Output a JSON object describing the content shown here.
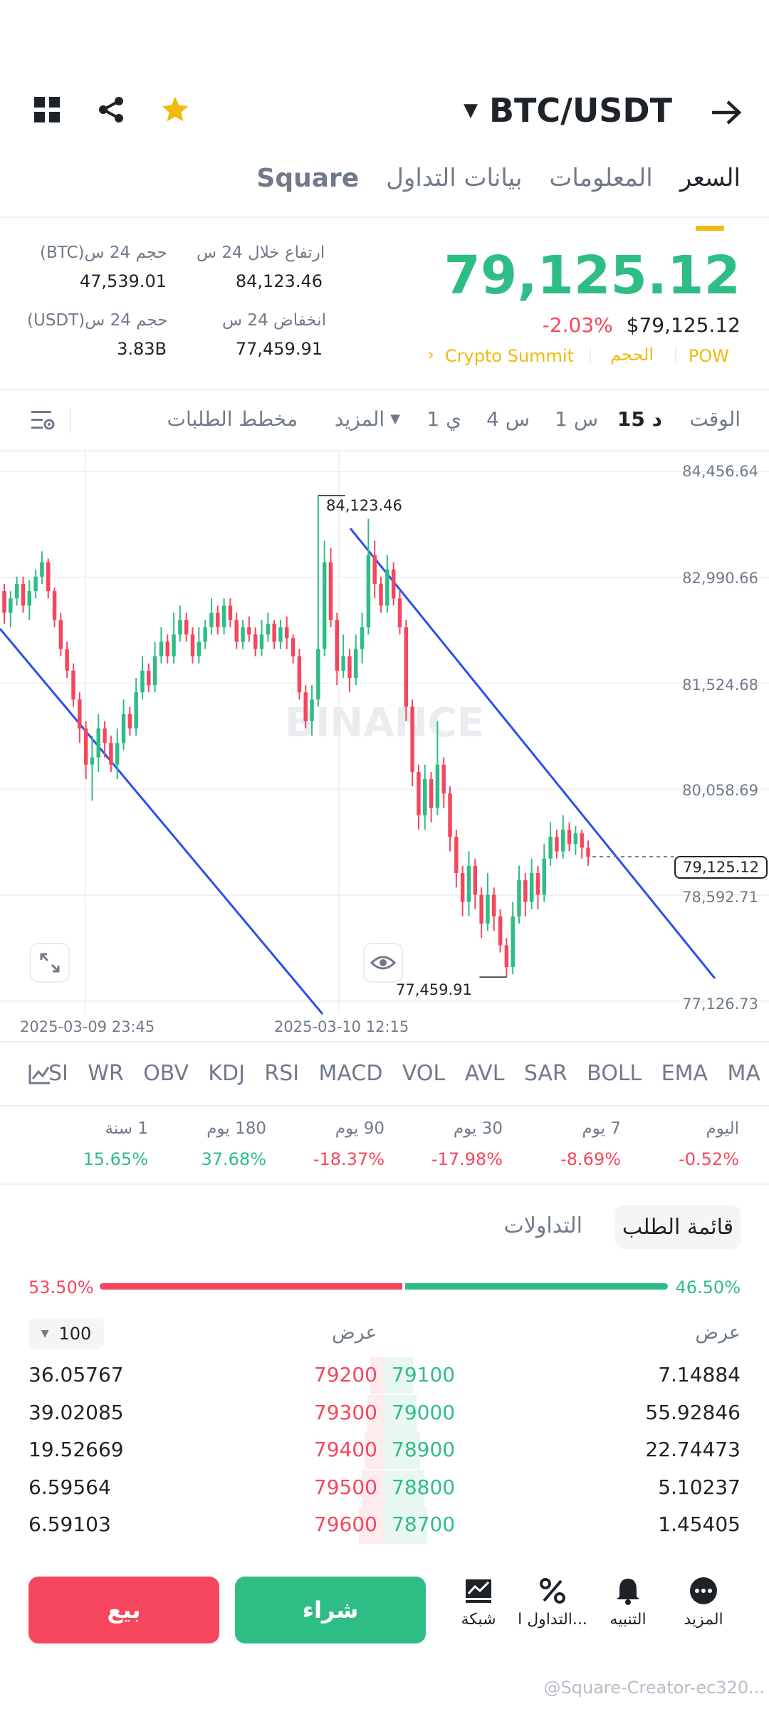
{
  "header": {
    "pair": "BTC/USDT"
  },
  "tabs": [
    "السعر",
    "المعلومات",
    "بيانات التداول",
    "Square"
  ],
  "ticker": {
    "last_price": "79,125.12",
    "change_pct": "-2.03%",
    "usd_price": "$79,125.12",
    "tag_pow": "POW",
    "tag_volume": "الحجم",
    "tag_event": "Crypto Summit",
    "high_label": "ارتفاع خلال 24 س",
    "high_value": "84,123.46",
    "vol_btc_label": "حجم 24 س(BTC)",
    "vol_btc_value": "47,539.01",
    "low_label": "انخفاض 24 س",
    "low_value": "77,459.91",
    "vol_usdt_label": "حجم 24 س(USDT)",
    "vol_usdt_value": "3.83B"
  },
  "timebar": {
    "time": "الوقت",
    "m15": "15 د",
    "h1": "1 س",
    "h4": "4 س",
    "d1": "1 ي",
    "more": "المزيد",
    "depth": "مخطط الطلبات"
  },
  "chart_data": {
    "type": "candlestick",
    "y_ticks": [
      "84,456.64",
      "82,990.66",
      "81,524.68",
      "80,058.69",
      "78,592.71",
      "77,126.73"
    ],
    "x_ticks": [
      "2025-03-09 23:45",
      "2025-03-10 12:15"
    ],
    "high_annotation": "84,123.46",
    "low_annotation": "77,459.91",
    "current_price_label": "79,125.12",
    "watermark": "BINANCE",
    "ylim": [
      77126.73,
      84456.64
    ],
    "candles": [
      [
        82800,
        82500,
        82900,
        82350
      ],
      [
        82500,
        82700,
        82800,
        82300
      ],
      [
        82700,
        82900,
        83000,
        82600
      ],
      [
        82900,
        82600,
        83000,
        82500
      ],
      [
        82600,
        82800,
        82950,
        82400
      ],
      [
        82800,
        83000,
        83100,
        82700
      ],
      [
        83000,
        83200,
        83350,
        82900
      ],
      [
        83200,
        82800,
        83250,
        82700
      ],
      [
        82800,
        82400,
        82850,
        82300
      ],
      [
        82400,
        82000,
        82500,
        81900
      ],
      [
        82000,
        81700,
        82100,
        81600
      ],
      [
        81700,
        81300,
        81800,
        81200
      ],
      [
        81300,
        80900,
        81400,
        80700
      ],
      [
        80900,
        80400,
        81000,
        80200
      ],
      [
        80400,
        80500,
        80800,
        79900
      ],
      [
        80500,
        80900,
        81100,
        80300
      ],
      [
        80900,
        80700,
        81000,
        80500
      ],
      [
        80700,
        80400,
        80800,
        80300
      ],
      [
        80400,
        80700,
        80900,
        80200
      ],
      [
        80700,
        81100,
        81300,
        80600
      ],
      [
        81100,
        80900,
        81200,
        80800
      ],
      [
        80900,
        81400,
        81600,
        80800
      ],
      [
        81400,
        81700,
        81900,
        81300
      ],
      [
        81700,
        81500,
        81800,
        81400
      ],
      [
        81500,
        81900,
        82100,
        81400
      ],
      [
        81900,
        82100,
        82300,
        81800
      ],
      [
        82100,
        81900,
        82200,
        81800
      ],
      [
        81900,
        82200,
        82500,
        81800
      ],
      [
        82200,
        82400,
        82600,
        82100
      ],
      [
        82400,
        82200,
        82500,
        82100
      ],
      [
        82200,
        81900,
        82300,
        81800
      ],
      [
        81900,
        82100,
        82300,
        81800
      ],
      [
        82100,
        82300,
        82400,
        82000
      ],
      [
        82300,
        82500,
        82700,
        82200
      ],
      [
        82500,
        82300,
        82600,
        82200
      ],
      [
        82300,
        82600,
        82700,
        82200
      ],
      [
        82600,
        82400,
        82700,
        82300
      ],
      [
        82400,
        82100,
        82500,
        82000
      ],
      [
        82100,
        82300,
        82400,
        82000
      ],
      [
        82300,
        82200,
        82450,
        82100
      ],
      [
        82200,
        82000,
        82300,
        81900
      ],
      [
        82000,
        82200,
        82400,
        81900
      ],
      [
        82200,
        82350,
        82500,
        82100
      ],
      [
        82350,
        82100,
        82400,
        82000
      ],
      [
        82100,
        82300,
        82400,
        82000
      ],
      [
        82300,
        82150,
        82450,
        82000
      ],
      [
        82150,
        81900,
        82200,
        81800
      ],
      [
        81900,
        81400,
        82000,
        81300
      ],
      [
        81400,
        81000,
        81500,
        80900
      ],
      [
        81000,
        81300,
        81500,
        80800
      ],
      [
        81300,
        82000,
        84123,
        81200
      ],
      [
        82000,
        83200,
        83500,
        81900
      ],
      [
        83200,
        82400,
        83400,
        82300
      ],
      [
        82400,
        81700,
        82500,
        81500
      ],
      [
        81700,
        81900,
        82200,
        81600
      ],
      [
        81900,
        81600,
        82000,
        81400
      ],
      [
        81600,
        82000,
        82200,
        81500
      ],
      [
        82000,
        82300,
        82500,
        81800
      ],
      [
        82300,
        83300,
        83800,
        82200
      ],
      [
        83300,
        82900,
        83500,
        82700
      ],
      [
        82900,
        82600,
        83000,
        82500
      ],
      [
        82600,
        83100,
        83300,
        82500
      ],
      [
        83100,
        82700,
        83200,
        82600
      ],
      [
        82700,
        82300,
        82800,
        82200
      ],
      [
        82300,
        81200,
        82400,
        81000
      ],
      [
        81200,
        80300,
        81300,
        80100
      ],
      [
        80300,
        79700,
        80400,
        79500
      ],
      [
        79700,
        80200,
        80400,
        79500
      ],
      [
        80200,
        79800,
        80300,
        79600
      ],
      [
        79800,
        80400,
        81000,
        79700
      ],
      [
        80400,
        80000,
        80500,
        79800
      ],
      [
        80000,
        79400,
        80100,
        79200
      ],
      [
        79400,
        78900,
        79500,
        78700
      ],
      [
        78900,
        78500,
        79000,
        78300
      ],
      [
        78500,
        79000,
        79200,
        78300
      ],
      [
        79000,
        78600,
        79100,
        78400
      ],
      [
        78600,
        78200,
        78700,
        78000
      ],
      [
        78200,
        78600,
        78900,
        78100
      ],
      [
        78600,
        78300,
        78700,
        78100
      ],
      [
        78300,
        77900,
        78400,
        77800
      ],
      [
        77900,
        77600,
        78000,
        77460
      ],
      [
        77600,
        78300,
        78500,
        77500
      ],
      [
        78300,
        78800,
        79000,
        78200
      ],
      [
        78800,
        78500,
        78900,
        78300
      ],
      [
        78500,
        78900,
        79100,
        78400
      ],
      [
        78900,
        78600,
        79000,
        78400
      ],
      [
        78600,
        79100,
        79300,
        78500
      ],
      [
        79100,
        79400,
        79600,
        79000
      ],
      [
        79400,
        79200,
        79500,
        79100
      ],
      [
        79200,
        79500,
        79700,
        79100
      ],
      [
        79500,
        79300,
        79600,
        79200
      ],
      [
        79300,
        79450,
        79550,
        79150
      ],
      [
        79450,
        79250,
        79500,
        79100
      ],
      [
        79250,
        79125,
        79350,
        79000
      ]
    ]
  },
  "indicators": [
    "MA",
    "EMA",
    "BOLL",
    "SAR",
    "AVL",
    "VOL",
    "MACD",
    "RSI",
    "KDJ",
    "OBV",
    "WR",
    "SI"
  ],
  "performance": [
    {
      "label": "اليوم",
      "value": "-0.52%"
    },
    {
      "label": "7 يوم",
      "value": "-8.69%"
    },
    {
      "label": "30 يوم",
      "value": "-17.98%"
    },
    {
      "label": "90 يوم",
      "value": "-18.37%"
    },
    {
      "label": "180 يوم",
      "value": "37.68%"
    },
    {
      "label": "1 سنة",
      "value": "15.65%"
    }
  ],
  "orderbook": {
    "tab_book": "قائمة الطلب",
    "tab_trades": "التداولات",
    "buy_pct": "46.50%",
    "sell_pct": "53.50%",
    "buy_ratio": 0.465,
    "bid_header": "عرض",
    "ask_header": "عرض",
    "precision": "100",
    "rows": [
      {
        "bid_qty": "7.14884",
        "bid_price": "79100",
        "ask_price": "79200",
        "ask_qty": "36.05767"
      },
      {
        "bid_qty": "55.92846",
        "bid_price": "79000",
        "ask_price": "79300",
        "ask_qty": "39.02085"
      },
      {
        "bid_qty": "22.74473",
        "bid_price": "78900",
        "ask_price": "79400",
        "ask_qty": "19.52669"
      },
      {
        "bid_qty": "5.10237",
        "bid_price": "78800",
        "ask_price": "79500",
        "ask_qty": "6.59564"
      },
      {
        "bid_qty": "1.45405",
        "bid_price": "78700",
        "ask_price": "79600",
        "ask_qty": "6.59103"
      }
    ]
  },
  "bottom_bar": {
    "more": "المزيد",
    "alert": "التنبيه",
    "trade": "التداول ا...",
    "grid": "شبكة",
    "buy": "شراء",
    "sell": "بيع"
  },
  "watermark_footer": "@Square-Creator-ec320...",
  "colors": {
    "up": "#2ebd85",
    "down": "#f6465d",
    "brand": "#f0b90b",
    "trendline": "#2b50ec"
  }
}
